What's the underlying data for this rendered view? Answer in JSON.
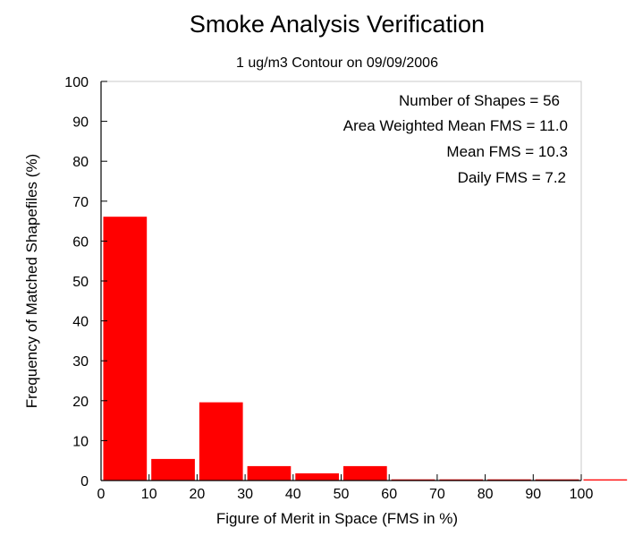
{
  "chart_data": {
    "type": "bar",
    "title": "Smoke Analysis Verification",
    "subtitle": "1 ug/m3 Contour on 09/09/2006",
    "xlabel": "Figure of Merit in Space (FMS in %)",
    "ylabel": "Frequency of Matched Shapefiles (%)",
    "xlim": [
      0,
      100
    ],
    "ylim": [
      0,
      100
    ],
    "xticks": [
      "0",
      "10",
      "20",
      "30",
      "40",
      "50",
      "60",
      "70",
      "80",
      "90",
      "100"
    ],
    "yticks": [
      "0",
      "10",
      "20",
      "30",
      "40",
      "50",
      "60",
      "70",
      "80",
      "90",
      "100"
    ],
    "grid": false,
    "bin_edges": [
      0,
      10,
      20,
      30,
      40,
      50,
      60,
      70,
      80,
      90,
      100,
      110
    ],
    "values": [
      66.1,
      5.4,
      19.6,
      3.6,
      1.8,
      3.6,
      0,
      0,
      0,
      0,
      0
    ],
    "bar_color": "#ff0000",
    "annotations": [
      "Number of Shapes = 56",
      "Area Weighted Mean FMS = 11.0",
      "Mean FMS = 10.3",
      "Daily FMS = 7.2"
    ]
  }
}
